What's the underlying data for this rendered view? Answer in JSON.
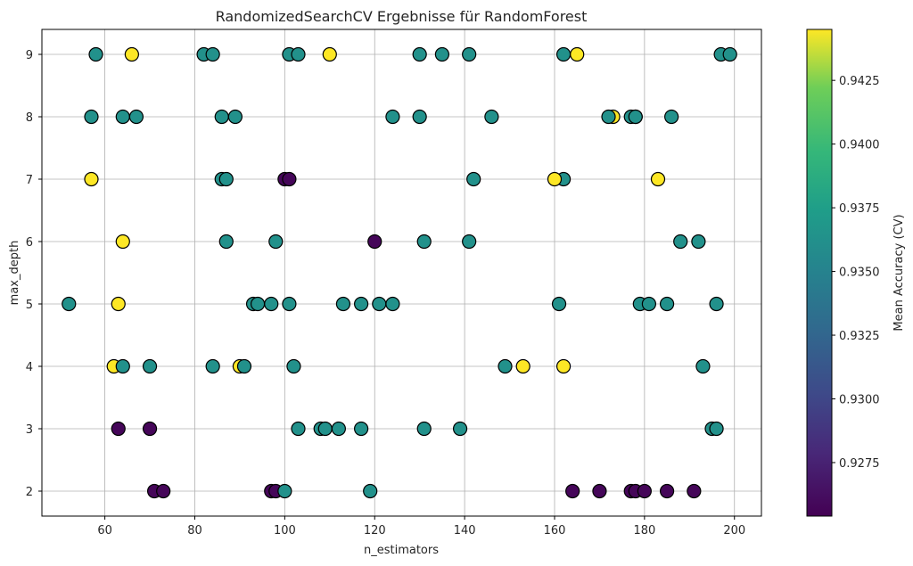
{
  "chart_data": {
    "type": "scatter",
    "title": "RandomizedSearchCV Ergebnisse für RandomForest",
    "xlabel": "n_estimators",
    "ylabel": "max_depth",
    "xlim": [
      46,
      206
    ],
    "ylim": [
      1.6,
      9.4
    ],
    "xticks": [
      60,
      80,
      100,
      120,
      140,
      160,
      180,
      200
    ],
    "yticks": [
      2,
      3,
      4,
      5,
      6,
      7,
      8,
      9
    ],
    "grid": true,
    "colormap": "viridis",
    "colorbar": {
      "label": "Mean Accuracy (CV)",
      "range": [
        0.9254,
        0.9445
      ],
      "ticks": [
        "0.9275",
        "0.9300",
        "0.9325",
        "0.9350",
        "0.9375",
        "0.9400",
        "0.9425"
      ],
      "tick_values": [
        0.9275,
        0.93,
        0.9325,
        0.935,
        0.9375,
        0.94,
        0.9425
      ]
    },
    "points": [
      {
        "x": 58,
        "y": 9,
        "c": 0.9362
      },
      {
        "x": 66,
        "y": 9,
        "c": 0.9445
      },
      {
        "x": 82,
        "y": 9,
        "c": 0.9362
      },
      {
        "x": 84,
        "y": 9,
        "c": 0.9362
      },
      {
        "x": 101,
        "y": 9,
        "c": 0.9362
      },
      {
        "x": 103,
        "y": 9,
        "c": 0.9362
      },
      {
        "x": 110,
        "y": 9,
        "c": 0.9445
      },
      {
        "x": 130,
        "y": 9,
        "c": 0.9362
      },
      {
        "x": 135,
        "y": 9,
        "c": 0.9362
      },
      {
        "x": 141,
        "y": 9,
        "c": 0.9362
      },
      {
        "x": 162,
        "y": 9,
        "c": 0.9362
      },
      {
        "x": 165,
        "y": 9,
        "c": 0.9445
      },
      {
        "x": 197,
        "y": 9,
        "c": 0.9362
      },
      {
        "x": 199,
        "y": 9,
        "c": 0.9362
      },
      {
        "x": 57,
        "y": 8,
        "c": 0.9362
      },
      {
        "x": 64,
        "y": 8,
        "c": 0.9362
      },
      {
        "x": 67,
        "y": 8,
        "c": 0.9362
      },
      {
        "x": 86,
        "y": 8,
        "c": 0.9362
      },
      {
        "x": 89,
        "y": 8,
        "c": 0.9362
      },
      {
        "x": 124,
        "y": 8,
        "c": 0.9362
      },
      {
        "x": 130,
        "y": 8,
        "c": 0.9362
      },
      {
        "x": 146,
        "y": 8,
        "c": 0.9362
      },
      {
        "x": 173,
        "y": 8,
        "c": 0.9445
      },
      {
        "x": 172,
        "y": 8,
        "c": 0.9362
      },
      {
        "x": 178,
        "y": 8,
        "c": 0.9445
      },
      {
        "x": 177,
        "y": 8,
        "c": 0.9362
      },
      {
        "x": 178,
        "y": 8,
        "c": 0.9362
      },
      {
        "x": 186,
        "y": 8,
        "c": 0.9362
      },
      {
        "x": 57,
        "y": 7,
        "c": 0.9445
      },
      {
        "x": 86,
        "y": 7,
        "c": 0.9362
      },
      {
        "x": 87,
        "y": 7,
        "c": 0.9362
      },
      {
        "x": 100,
        "y": 7,
        "c": 0.9257
      },
      {
        "x": 101,
        "y": 7,
        "c": 0.9257
      },
      {
        "x": 142,
        "y": 7,
        "c": 0.9362
      },
      {
        "x": 162,
        "y": 7,
        "c": 0.9362
      },
      {
        "x": 160,
        "y": 7,
        "c": 0.9445
      },
      {
        "x": 183,
        "y": 7,
        "c": 0.9445
      },
      {
        "x": 64,
        "y": 6,
        "c": 0.9445
      },
      {
        "x": 87,
        "y": 6,
        "c": 0.9362
      },
      {
        "x": 98,
        "y": 6,
        "c": 0.9362
      },
      {
        "x": 120,
        "y": 6,
        "c": 0.9257
      },
      {
        "x": 131,
        "y": 6,
        "c": 0.9362
      },
      {
        "x": 141,
        "y": 6,
        "c": 0.9362
      },
      {
        "x": 188,
        "y": 6,
        "c": 0.9362
      },
      {
        "x": 192,
        "y": 6,
        "c": 0.9362
      },
      {
        "x": 52,
        "y": 5,
        "c": 0.9362
      },
      {
        "x": 63,
        "y": 5,
        "c": 0.9445
      },
      {
        "x": 93,
        "y": 5,
        "c": 0.9362
      },
      {
        "x": 94,
        "y": 5,
        "c": 0.9362
      },
      {
        "x": 97,
        "y": 5,
        "c": 0.9362
      },
      {
        "x": 101,
        "y": 5,
        "c": 0.9362
      },
      {
        "x": 113,
        "y": 5,
        "c": 0.9362
      },
      {
        "x": 117,
        "y": 5,
        "c": 0.9362
      },
      {
        "x": 121,
        "y": 5,
        "c": 0.9362
      },
      {
        "x": 124,
        "y": 5,
        "c": 0.9362
      },
      {
        "x": 161,
        "y": 5,
        "c": 0.9362
      },
      {
        "x": 179,
        "y": 5,
        "c": 0.9362
      },
      {
        "x": 181,
        "y": 5,
        "c": 0.9362
      },
      {
        "x": 185,
        "y": 5,
        "c": 0.9362
      },
      {
        "x": 196,
        "y": 5,
        "c": 0.9362
      },
      {
        "x": 62,
        "y": 4,
        "c": 0.9445
      },
      {
        "x": 64,
        "y": 4,
        "c": 0.9362
      },
      {
        "x": 70,
        "y": 4,
        "c": 0.9362
      },
      {
        "x": 84,
        "y": 4,
        "c": 0.9362
      },
      {
        "x": 90,
        "y": 4,
        "c": 0.9445
      },
      {
        "x": 91,
        "y": 4,
        "c": 0.9362
      },
      {
        "x": 102,
        "y": 4,
        "c": 0.9362
      },
      {
        "x": 149,
        "y": 4,
        "c": 0.9362
      },
      {
        "x": 153,
        "y": 4,
        "c": 0.9445
      },
      {
        "x": 162,
        "y": 4,
        "c": 0.9445
      },
      {
        "x": 193,
        "y": 4,
        "c": 0.9362
      },
      {
        "x": 63,
        "y": 3,
        "c": 0.9257
      },
      {
        "x": 70,
        "y": 3,
        "c": 0.9257
      },
      {
        "x": 103,
        "y": 3,
        "c": 0.9362
      },
      {
        "x": 108,
        "y": 3,
        "c": 0.9362
      },
      {
        "x": 109,
        "y": 3,
        "c": 0.9362
      },
      {
        "x": 112,
        "y": 3,
        "c": 0.9362
      },
      {
        "x": 117,
        "y": 3,
        "c": 0.9362
      },
      {
        "x": 131,
        "y": 3,
        "c": 0.9362
      },
      {
        "x": 139,
        "y": 3,
        "c": 0.9362
      },
      {
        "x": 195,
        "y": 3,
        "c": 0.9362
      },
      {
        "x": 196,
        "y": 3,
        "c": 0.9362
      },
      {
        "x": 71,
        "y": 2,
        "c": 0.9257
      },
      {
        "x": 73,
        "y": 2,
        "c": 0.9257
      },
      {
        "x": 97,
        "y": 2,
        "c": 0.9257
      },
      {
        "x": 98,
        "y": 2,
        "c": 0.9257
      },
      {
        "x": 100,
        "y": 2,
        "c": 0.9362
      },
      {
        "x": 119,
        "y": 2,
        "c": 0.9362
      },
      {
        "x": 164,
        "y": 2,
        "c": 0.9257
      },
      {
        "x": 170,
        "y": 2,
        "c": 0.9257
      },
      {
        "x": 177,
        "y": 2,
        "c": 0.9257
      },
      {
        "x": 178,
        "y": 2,
        "c": 0.9257
      },
      {
        "x": 180,
        "y": 2,
        "c": 0.9257
      },
      {
        "x": 185,
        "y": 2,
        "c": 0.9257
      },
      {
        "x": 191,
        "y": 2,
        "c": 0.9257
      }
    ]
  }
}
